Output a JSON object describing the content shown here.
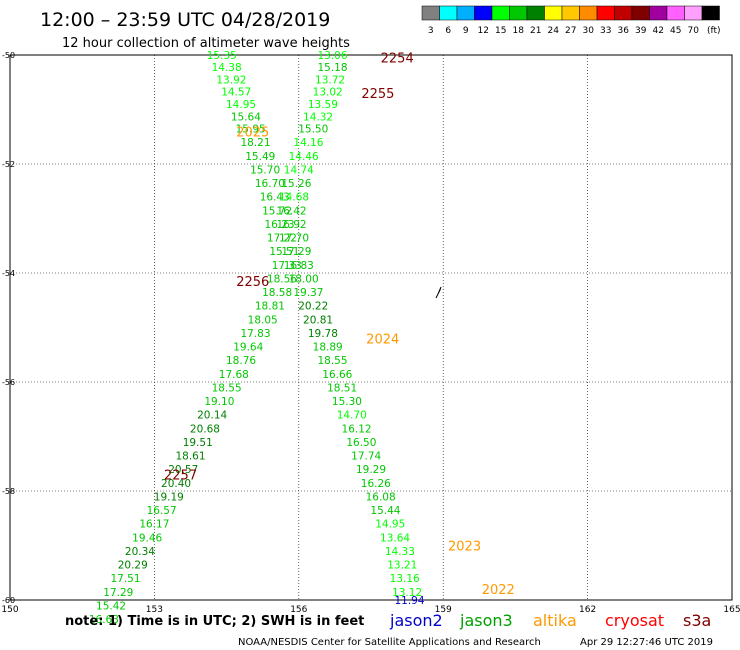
{
  "header": {
    "title": "12:00 – 23:59 UTC 04/28/2019",
    "subtitle": "12 hour collection of altimeter wave heights"
  },
  "legend_scale": {
    "labels": [
      "3",
      "6",
      "9",
      "12",
      "15",
      "18",
      "21",
      "24",
      "27",
      "30",
      "33",
      "36",
      "39",
      "42",
      "45",
      "70",
      "(ft)"
    ],
    "colors": [
      "#808080",
      "#00ffff",
      "#00b0ff",
      "#0000ff",
      "#00ff00",
      "#00c800",
      "#008000",
      "#ffff00",
      "#ffc800",
      "#ff8c00",
      "#ff0000",
      "#c00000",
      "#800000",
      "#a000a0",
      "#ff60ff",
      "#ffa0ff",
      "#000000"
    ]
  },
  "footer": {
    "note": "note: 1) Time is in UTC; 2) SWH is in feet",
    "satellites": [
      {
        "name": "jason2",
        "color": "#0000cc"
      },
      {
        "name": "jason3",
        "color": "#00a000"
      },
      {
        "name": "altika",
        "color": "#ff9900"
      },
      {
        "name": "cryosat",
        "color": "#ff0000"
      },
      {
        "name": "s3a",
        "color": "#800000"
      }
    ],
    "credit": "NOAA/NESDIS Center for Satellite Applications and Research",
    "timestamp": "Apr 29 12:27:46 UTC 2019"
  },
  "chart_data": {
    "type": "scatter",
    "xlim": [
      150,
      165
    ],
    "ylim": [
      -60,
      -50
    ],
    "x_ticks": [
      "150",
      "153",
      "156",
      "159",
      "162",
      "165"
    ],
    "y_ticks": [
      "-50",
      "-52",
      "-54",
      "-56",
      "-58",
      "-60"
    ],
    "grid": true,
    "pass_labels": [
      {
        "text": "2254",
        "x": 157.7,
        "y": -50.05,
        "color": "#800000"
      },
      {
        "text": "2255",
        "x": 157.3,
        "y": -50.7,
        "color": "#800000"
      },
      {
        "text": "2025",
        "x": 154.7,
        "y": -51.4,
        "color": "#ff9900"
      },
      {
        "text": "2256",
        "x": 154.7,
        "y": -54.15,
        "color": "#800000"
      },
      {
        "text": "2024",
        "x": 157.4,
        "y": -55.2,
        "color": "#ff9900"
      },
      {
        "text": "2257",
        "x": 153.2,
        "y": -57.7,
        "color": "#800000"
      },
      {
        "text": "2023",
        "x": 159.1,
        "y": -59.0,
        "color": "#ff9900"
      },
      {
        "text": "2022",
        "x": 159.8,
        "y": -59.8,
        "color": "#ff9900"
      }
    ],
    "points": [
      {
        "t": "15.35",
        "x": 154.4,
        "y": -50.0,
        "c": "#00ff00"
      },
      {
        "t": "14.38",
        "x": 154.5,
        "y": -50.22,
        "c": "#00ff00"
      },
      {
        "t": "13.92",
        "x": 154.6,
        "y": -50.45,
        "c": "#00ff00"
      },
      {
        "t": "14.57",
        "x": 154.7,
        "y": -50.67,
        "c": "#00ff00"
      },
      {
        "t": "14.95",
        "x": 154.8,
        "y": -50.9,
        "c": "#00ff00"
      },
      {
        "t": "15.64",
        "x": 154.9,
        "y": -51.13,
        "c": "#00c800"
      },
      {
        "t": "15.95",
        "x": 155.0,
        "y": -51.35,
        "c": "#00c800"
      },
      {
        "t": "18.21",
        "x": 155.1,
        "y": -51.6,
        "c": "#00c800"
      },
      {
        "t": "15.49",
        "x": 155.2,
        "y": -51.85,
        "c": "#00c800"
      },
      {
        "t": "15.70",
        "x": 155.3,
        "y": -52.1,
        "c": "#00c800"
      },
      {
        "t": "16.70",
        "x": 155.4,
        "y": -52.35,
        "c": "#00c800"
      },
      {
        "t": "16.43",
        "x": 155.5,
        "y": -52.6,
        "c": "#00c800"
      },
      {
        "t": "15.72",
        "x": 155.55,
        "y": -52.85,
        "c": "#00c800"
      },
      {
        "t": "16.23",
        "x": 155.6,
        "y": -53.1,
        "c": "#00c800"
      },
      {
        "t": "17.22",
        "x": 155.65,
        "y": -53.35,
        "c": "#00c800"
      },
      {
        "t": "15.51",
        "x": 155.7,
        "y": -53.6,
        "c": "#00c800"
      },
      {
        "t": "17.33",
        "x": 155.75,
        "y": -53.85,
        "c": "#00c800"
      },
      {
        "t": "18.56",
        "x": 155.65,
        "y": -54.1,
        "c": "#00c800"
      },
      {
        "t": "18.58",
        "x": 155.55,
        "y": -54.35,
        "c": "#00c800"
      },
      {
        "t": "18.81",
        "x": 155.4,
        "y": -54.6,
        "c": "#00c800"
      },
      {
        "t": "18.05",
        "x": 155.25,
        "y": -54.85,
        "c": "#00c800"
      },
      {
        "t": "17.83",
        "x": 155.1,
        "y": -55.1,
        "c": "#00c800"
      },
      {
        "t": "19.64",
        "x": 154.95,
        "y": -55.35,
        "c": "#00c800"
      },
      {
        "t": "18.76",
        "x": 154.8,
        "y": -55.6,
        "c": "#00c800"
      },
      {
        "t": "17.68",
        "x": 154.65,
        "y": -55.85,
        "c": "#00c800"
      },
      {
        "t": "18.55",
        "x": 154.5,
        "y": -56.1,
        "c": "#00c800"
      },
      {
        "t": "19.10",
        "x": 154.35,
        "y": -56.35,
        "c": "#00c800"
      },
      {
        "t": "20.14",
        "x": 154.2,
        "y": -56.6,
        "c": "#008000"
      },
      {
        "t": "20.68",
        "x": 154.05,
        "y": -56.85,
        "c": "#008000"
      },
      {
        "t": "19.51",
        "x": 153.9,
        "y": -57.1,
        "c": "#008000"
      },
      {
        "t": "18.61",
        "x": 153.75,
        "y": -57.35,
        "c": "#008000"
      },
      {
        "t": "20.57",
        "x": 153.6,
        "y": -57.6,
        "c": "#008000"
      },
      {
        "t": "20.40",
        "x": 153.45,
        "y": -57.85,
        "c": "#008000"
      },
      {
        "t": "19.19",
        "x": 153.3,
        "y": -58.1,
        "c": "#008000"
      },
      {
        "t": "16.57",
        "x": 153.15,
        "y": -58.35,
        "c": "#00c800"
      },
      {
        "t": "16.17",
        "x": 153.0,
        "y": -58.6,
        "c": "#00c800"
      },
      {
        "t": "19.46",
        "x": 152.85,
        "y": -58.85,
        "c": "#00c800"
      },
      {
        "t": "20.34",
        "x": 152.7,
        "y": -59.1,
        "c": "#008000"
      },
      {
        "t": "20.29",
        "x": 152.55,
        "y": -59.35,
        "c": "#008000"
      },
      {
        "t": "17.51",
        "x": 152.4,
        "y": -59.6,
        "c": "#00c800"
      },
      {
        "t": "17.29",
        "x": 152.25,
        "y": -59.85,
        "c": "#00c800"
      },
      {
        "t": "15.42",
        "x": 152.1,
        "y": -60.1,
        "c": "#00c800"
      },
      {
        "t": "16.63",
        "x": 151.95,
        "y": -60.35,
        "c": "#00c800"
      },
      {
        "t": "13.06",
        "x": 156.7,
        "y": -50.0,
        "c": "#00ff00"
      },
      {
        "t": "15.18",
        "x": 156.7,
        "y": -50.22,
        "c": "#00c800"
      },
      {
        "t": "13.72",
        "x": 156.65,
        "y": -50.45,
        "c": "#00ff00"
      },
      {
        "t": "13.02",
        "x": 156.6,
        "y": -50.67,
        "c": "#00ff00"
      },
      {
        "t": "13.59",
        "x": 156.5,
        "y": -50.9,
        "c": "#00ff00"
      },
      {
        "t": "14.32",
        "x": 156.4,
        "y": -51.13,
        "c": "#00ff00"
      },
      {
        "t": "15.50",
        "x": 156.3,
        "y": -51.35,
        "c": "#00c800"
      },
      {
        "t": "14.16",
        "x": 156.2,
        "y": -51.6,
        "c": "#00ff00"
      },
      {
        "t": "14.46",
        "x": 156.1,
        "y": -51.85,
        "c": "#00ff00"
      },
      {
        "t": "14.74",
        "x": 156.0,
        "y": -52.1,
        "c": "#00ff00"
      },
      {
        "t": "15.26",
        "x": 155.95,
        "y": -52.35,
        "c": "#00c800"
      },
      {
        "t": "14.68",
        "x": 155.9,
        "y": -52.6,
        "c": "#00ff00"
      },
      {
        "t": "16.42",
        "x": 155.85,
        "y": -52.85,
        "c": "#00c800"
      },
      {
        "t": "16.92",
        "x": 155.85,
        "y": -53.1,
        "c": "#00c800"
      },
      {
        "t": "17.70",
        "x": 155.9,
        "y": -53.35,
        "c": "#00c800"
      },
      {
        "t": "17.29",
        "x": 155.95,
        "y": -53.6,
        "c": "#00c800"
      },
      {
        "t": "16.83",
        "x": 156.0,
        "y": -53.85,
        "c": "#00c800"
      },
      {
        "t": "18.00",
        "x": 156.1,
        "y": -54.1,
        "c": "#00c800"
      },
      {
        "t": "19.37",
        "x": 156.2,
        "y": -54.35,
        "c": "#00c800"
      },
      {
        "t": "20.22",
        "x": 156.3,
        "y": -54.6,
        "c": "#008000"
      },
      {
        "t": "20.81",
        "x": 156.4,
        "y": -54.85,
        "c": "#008000"
      },
      {
        "t": "19.78",
        "x": 156.5,
        "y": -55.1,
        "c": "#008000"
      },
      {
        "t": "18.89",
        "x": 156.6,
        "y": -55.35,
        "c": "#00c800"
      },
      {
        "t": "18.55",
        "x": 156.7,
        "y": -55.6,
        "c": "#00c800"
      },
      {
        "t": "16.66",
        "x": 156.8,
        "y": -55.85,
        "c": "#00c800"
      },
      {
        "t": "18.51",
        "x": 156.9,
        "y": -56.1,
        "c": "#00c800"
      },
      {
        "t": "15.30",
        "x": 157.0,
        "y": -56.35,
        "c": "#00c800"
      },
      {
        "t": "14.70",
        "x": 157.1,
        "y": -56.6,
        "c": "#00ff00"
      },
      {
        "t": "16.12",
        "x": 157.2,
        "y": -56.85,
        "c": "#00c800"
      },
      {
        "t": "16.50",
        "x": 157.3,
        "y": -57.1,
        "c": "#00c800"
      },
      {
        "t": "17.74",
        "x": 157.4,
        "y": -57.35,
        "c": "#00c800"
      },
      {
        "t": "19.29",
        "x": 157.5,
        "y": -57.6,
        "c": "#00c800"
      },
      {
        "t": "16.26",
        "x": 157.6,
        "y": -57.85,
        "c": "#00c800"
      },
      {
        "t": "16.08",
        "x": 157.7,
        "y": -58.1,
        "c": "#00c800"
      },
      {
        "t": "15.44",
        "x": 157.8,
        "y": -58.35,
        "c": "#00c800"
      },
      {
        "t": "14.95",
        "x": 157.9,
        "y": -58.6,
        "c": "#00ff00"
      },
      {
        "t": "13.64",
        "x": 158.0,
        "y": -58.85,
        "c": "#00ff00"
      },
      {
        "t": "14.33",
        "x": 158.1,
        "y": -59.1,
        "c": "#00ff00"
      },
      {
        "t": "13.21",
        "x": 158.15,
        "y": -59.35,
        "c": "#00ff00"
      },
      {
        "t": "13.16",
        "x": 158.2,
        "y": -59.6,
        "c": "#00ff00"
      },
      {
        "t": "13.12",
        "x": 158.25,
        "y": -59.85,
        "c": "#00ff00"
      },
      {
        "t": "11.94",
        "x": 158.3,
        "y": -60.0,
        "c": "#0000cc"
      }
    ]
  }
}
